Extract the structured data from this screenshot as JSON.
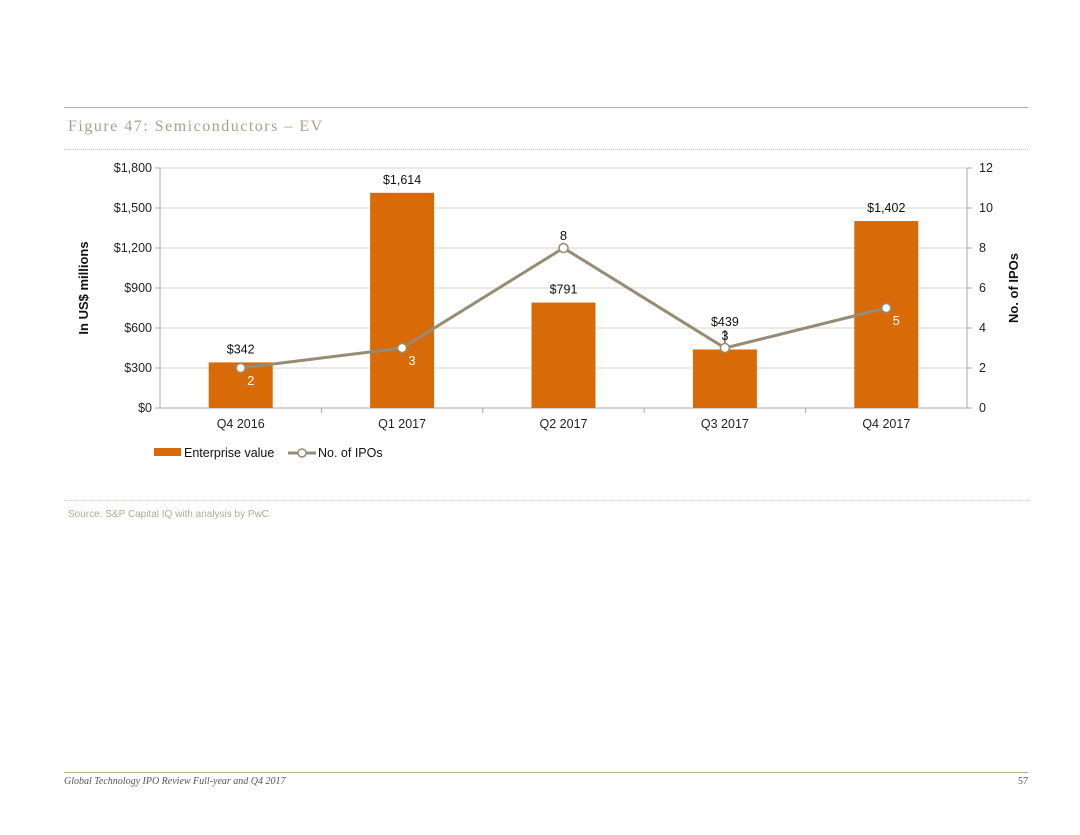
{
  "page": {
    "figure_title": "Figure 47: Semiconductors – EV",
    "source": "Source: S&P Capital IQ with analysis by PwC",
    "footer_left": "Global Technology IPO Review Full-year and Q4 2017",
    "footer_right": "57"
  },
  "chart_data": {
    "type": "bar",
    "title": "Figure 47: Semiconductors – EV",
    "categories": [
      "Q4 2016",
      "Q1 2017",
      "Q2 2017",
      "Q3 2017",
      "Q4 2017"
    ],
    "ylabel": "In US$ millions",
    "y2label": "No. of IPOs",
    "ylim": [
      0,
      1800
    ],
    "y2lim": [
      0,
      12
    ],
    "y_ticks": [
      0,
      300,
      600,
      900,
      1200,
      1500,
      1800
    ],
    "y_tick_labels": [
      "$0",
      "$300",
      "$600",
      "$900",
      "$1,200",
      "$1,500",
      "$1,800"
    ],
    "y2_ticks": [
      0,
      2,
      4,
      6,
      8,
      10,
      12
    ],
    "y2_tick_labels": [
      "0",
      "2",
      "4",
      "6",
      "8",
      "10",
      "12"
    ],
    "grid": true,
    "legend_position": "bottom-left",
    "series": [
      {
        "name": "Enterprise value",
        "type": "bar",
        "axis": "left",
        "color": "#d86b08",
        "values": [
          342,
          1614,
          791,
          439,
          1402
        ],
        "labels": [
          "$342",
          "$1,614",
          "$791",
          "$439",
          "$1,402"
        ]
      },
      {
        "name": "No. of IPOs",
        "type": "line",
        "axis": "right",
        "color": "#968c74",
        "values": [
          2,
          3,
          8,
          3,
          5
        ],
        "labels": [
          "2",
          "3",
          "8",
          "3",
          "5"
        ]
      }
    ]
  }
}
